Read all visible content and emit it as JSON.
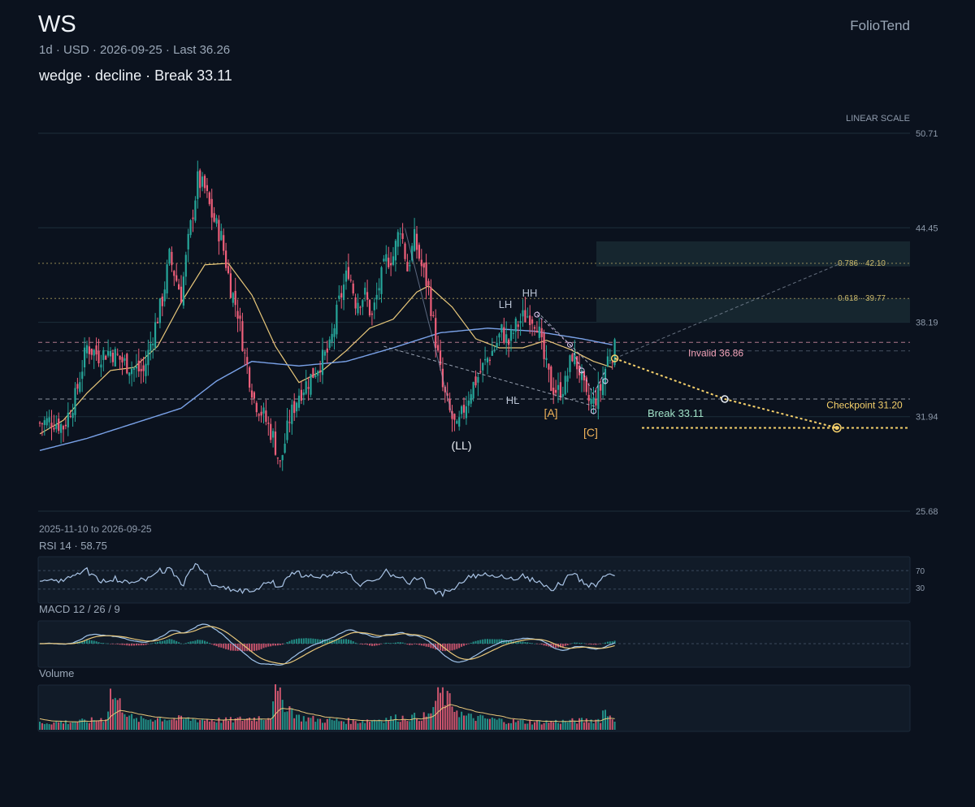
{
  "header": {
    "symbol": "WS",
    "brand": "FolioTend",
    "subtitle": "1d · USD · 2026-09-25 · Last 36.26",
    "pattern_line": "wedge · decline · Break 33.11"
  },
  "colors": {
    "background": "#0b121e",
    "up": "#26a69a",
    "down": "#ef5f7a",
    "sma_fast": "#e8c77a",
    "sma_slow": "#7aa2e8",
    "projection": "#f5d06b",
    "invalid": "#f2a2b8",
    "break": "#9fe0c6",
    "fib": "#c9b76a",
    "wave_label": "#f0b35a"
  },
  "chart_data": {
    "type": "candlestick",
    "scale_label": "LINEAR SCALE",
    "range_label": "2025-11-10 to 2026-09-25",
    "date_range": [
      "2025-11-10",
      "2026-09-25"
    ],
    "ylim": [
      25.68,
      50.71
    ],
    "y_ticks": [
      "50.71",
      "44.45",
      "38.19",
      "31.94",
      "25.68"
    ],
    "close_path": [
      [
        0,
        31.5
      ],
      [
        5,
        31.7
      ],
      [
        10,
        31.3
      ],
      [
        15,
        33.2
      ],
      [
        20,
        36.6
      ],
      [
        25,
        36.0
      ],
      [
        30,
        36.3
      ],
      [
        35,
        35.6
      ],
      [
        40,
        35.1
      ],
      [
        44,
        34.9
      ],
      [
        48,
        37.4
      ],
      [
        52,
        39.7
      ],
      [
        55,
        42.5
      ],
      [
        60,
        40.0
      ],
      [
        63,
        43.5
      ],
      [
        67,
        47.6
      ],
      [
        70,
        47.0
      ],
      [
        73,
        45.3
      ],
      [
        77,
        43.8
      ],
      [
        81,
        40.5
      ],
      [
        84,
        38.9
      ],
      [
        87,
        36.0
      ],
      [
        91,
        33.1
      ],
      [
        95,
        32.0
      ],
      [
        99,
        30.6
      ],
      [
        102,
        28.7
      ],
      [
        106,
        31.8
      ],
      [
        110,
        33.5
      ],
      [
        114,
        34.3
      ],
      [
        118,
        35.3
      ],
      [
        123,
        36.4
      ],
      [
        127,
        39.5
      ],
      [
        131,
        41.7
      ],
      [
        134,
        39.6
      ],
      [
        138,
        40.0
      ],
      [
        141,
        38.5
      ],
      [
        144,
        40.6
      ],
      [
        147,
        42.3
      ],
      [
        150,
        42.6
      ],
      [
        153,
        44.6
      ],
      [
        156,
        41.7
      ],
      [
        159,
        43.7
      ],
      [
        162,
        41.9
      ],
      [
        165,
        40.4
      ],
      [
        168,
        37.0
      ],
      [
        171,
        33.8
      ],
      [
        174,
        32.2
      ],
      [
        177,
        31.0
      ],
      [
        180,
        32.5
      ],
      [
        183,
        33.8
      ],
      [
        186,
        34.6
      ],
      [
        190,
        35.8
      ],
      [
        193,
        36.5
      ],
      [
        196,
        37.6
      ],
      [
        199,
        36.8
      ],
      [
        202,
        37.9
      ],
      [
        205,
        38.5
      ],
      [
        208,
        38.7
      ],
      [
        211,
        38.2
      ],
      [
        214,
        35.7
      ],
      [
        217,
        34.0
      ],
      [
        220,
        33.6
      ],
      [
        223,
        34.1
      ],
      [
        226,
        36.1
      ],
      [
        229,
        35.0
      ],
      [
        232,
        33.0
      ],
      [
        235,
        32.9
      ],
      [
        238,
        33.8
      ],
      [
        241,
        35.8
      ],
      [
        244,
        36.4
      ]
    ],
    "volume_path": [
      [
        0,
        0.18
      ],
      [
        10,
        0.2
      ],
      [
        20,
        0.22
      ],
      [
        28,
        0.3
      ],
      [
        30,
        0.95
      ],
      [
        40,
        0.25
      ],
      [
        50,
        0.3
      ],
      [
        58,
        0.28
      ],
      [
        70,
        0.26
      ],
      [
        80,
        0.24
      ],
      [
        90,
        0.3
      ],
      [
        98,
        0.35
      ],
      [
        99,
        1.0
      ],
      [
        110,
        0.32
      ],
      [
        120,
        0.25
      ],
      [
        135,
        0.22
      ],
      [
        150,
        0.3
      ],
      [
        165,
        0.35
      ],
      [
        170,
        0.95
      ],
      [
        180,
        0.35
      ],
      [
        190,
        0.28
      ],
      [
        200,
        0.22
      ],
      [
        210,
        0.2
      ],
      [
        225,
        0.22
      ],
      [
        238,
        0.26
      ],
      [
        239,
        0.5
      ],
      [
        244,
        0.3
      ]
    ],
    "sma_fast": [
      [
        0,
        30.8
      ],
      [
        10,
        31.7
      ],
      [
        20,
        33.5
      ],
      [
        30,
        35.0
      ],
      [
        40,
        35.2
      ],
      [
        50,
        36.6
      ],
      [
        60,
        39.5
      ],
      [
        70,
        42.0
      ],
      [
        80,
        42.1
      ],
      [
        90,
        40.0
      ],
      [
        100,
        36.6
      ],
      [
        110,
        34.2
      ],
      [
        120,
        35.0
      ],
      [
        130,
        36.3
      ],
      [
        140,
        37.8
      ],
      [
        150,
        38.4
      ],
      [
        160,
        40.2
      ],
      [
        165,
        40.6
      ],
      [
        175,
        39.2
      ],
      [
        185,
        37.1
      ],
      [
        195,
        36.5
      ],
      [
        205,
        36.5
      ],
      [
        215,
        37.0
      ],
      [
        225,
        36.4
      ],
      [
        235,
        35.6
      ],
      [
        243,
        35.2
      ]
    ],
    "sma_slow": [
      [
        0,
        29.7
      ],
      [
        20,
        30.5
      ],
      [
        40,
        31.5
      ],
      [
        60,
        32.5
      ],
      [
        75,
        34.3
      ],
      [
        90,
        35.6
      ],
      [
        110,
        35.3
      ],
      [
        130,
        35.6
      ],
      [
        150,
        36.5
      ],
      [
        170,
        37.5
      ],
      [
        190,
        37.8
      ],
      [
        210,
        37.6
      ],
      [
        230,
        37.1
      ],
      [
        243,
        36.7
      ]
    ],
    "rsi": {
      "label": "RSI 14 · 58.75",
      "value": 58.75,
      "levels": [
        "70",
        "30"
      ]
    },
    "macd": {
      "label": "MACD 12 / 26 / 9"
    },
    "volume": {
      "label": "Volume"
    },
    "levels": {
      "invalid": {
        "label": "Invalid 36.86",
        "value": 36.86
      },
      "break": {
        "label": "Break 33.11",
        "value": 33.11
      },
      "checkpoint": {
        "label": "Checkpoint 31.20",
        "value": 31.2
      },
      "fib_0786": {
        "label": "0.786 · 42.10",
        "value": 42.1
      },
      "fib_0618": {
        "label": "0.618 · 39.77",
        "value": 39.77
      }
    },
    "wave_labels": [
      "(LL)",
      "LH",
      "HH",
      "HL",
      "[A]",
      "[C]"
    ]
  }
}
